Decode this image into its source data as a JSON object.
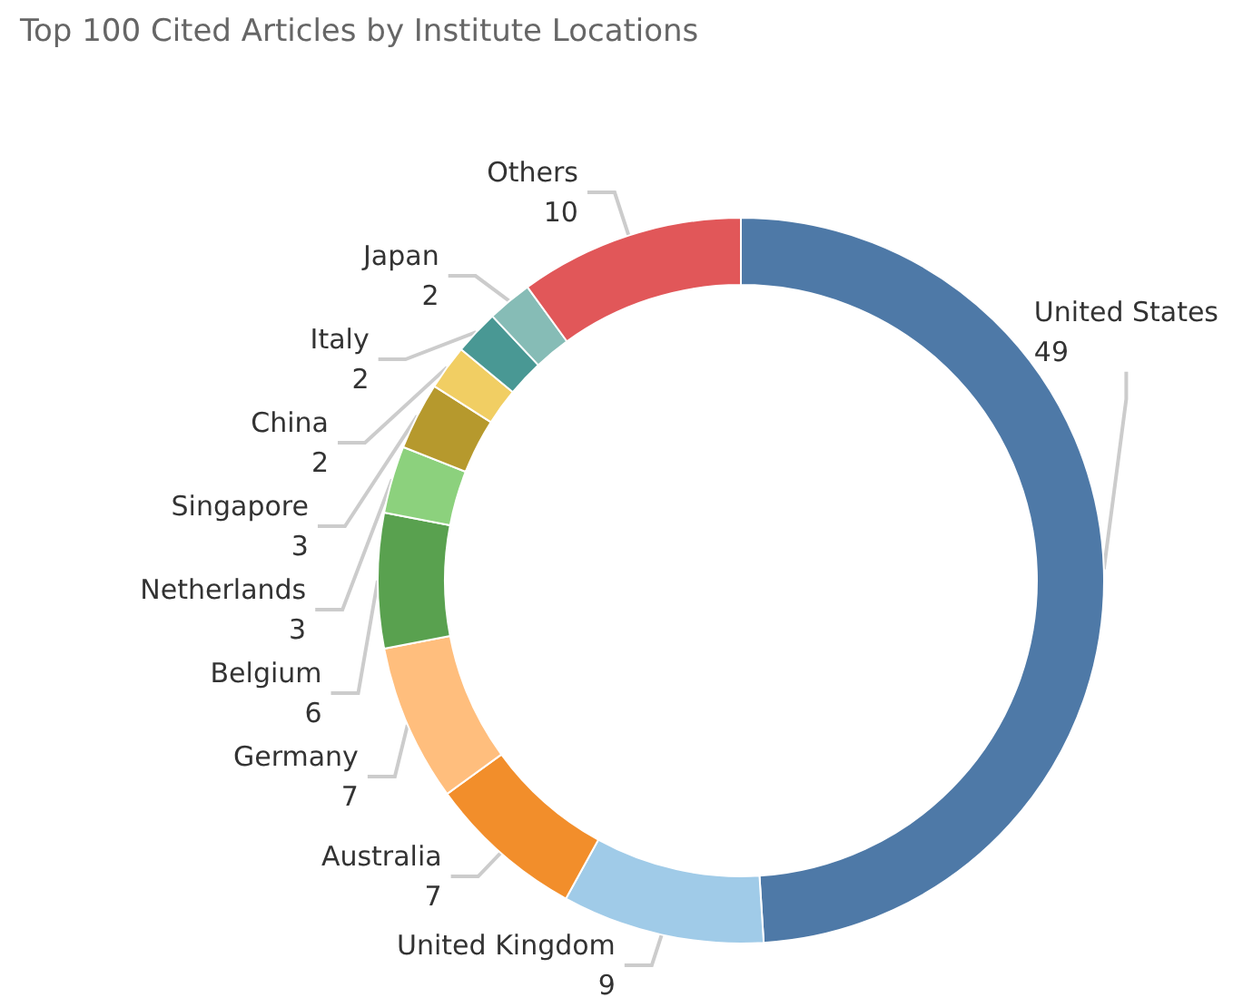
{
  "chart_data": {
    "type": "donut",
    "title": "Top 100 Cited Articles by Institute Locations",
    "categories": [
      "United States",
      "United Kingdom",
      "Australia",
      "Germany",
      "Belgium",
      "Netherlands",
      "Singapore",
      "China",
      "Italy",
      "Japan",
      "Others"
    ],
    "values": [
      49,
      9,
      7,
      7,
      6,
      3,
      3,
      2,
      2,
      2,
      10
    ],
    "colors": [
      "#4e79a7",
      "#a0cbe8",
      "#f28e2b",
      "#ffbe7d",
      "#59a14f",
      "#8cd17d",
      "#b6992d",
      "#f1ce63",
      "#499894",
      "#86bcb6",
      "#e15759"
    ],
    "data_labels": true,
    "legend": false
  }
}
